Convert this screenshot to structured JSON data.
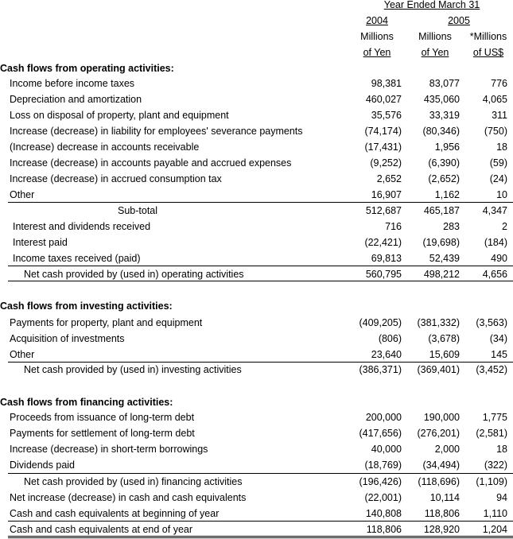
{
  "header": {
    "period": "Year Ended March 31",
    "year_2004": "2004",
    "year_2005": "2005",
    "col1_line1": "Millions",
    "col1_line2": "of Yen",
    "col2_line1": "Millions",
    "col2_line2": "of Yen",
    "col3_line1": "*Millions",
    "col3_line2": "of US$"
  },
  "operating": {
    "title": "Cash flows from operating activities:",
    "rows": [
      {
        "label": "Income before income taxes",
        "v2004": "98,381",
        "v2005": "83,077",
        "usd": "776"
      },
      {
        "label": "Depreciation and amortization",
        "v2004": "460,027",
        "v2005": "435,060",
        "usd": "4,065"
      },
      {
        "label": "Loss on disposal of property, plant and equipment",
        "v2004": "35,576",
        "v2005": "33,319",
        "usd": "311"
      },
      {
        "label": "Increase (decrease) in liability for employees' severance payments",
        "v2004": "(74,174)",
        "v2005": "(80,346)",
        "usd": "(750)"
      },
      {
        "label": "(Increase) decrease in accounts receivable",
        "v2004": "(17,431)",
        "v2005": "1,956",
        "usd": "18"
      },
      {
        "label": "Increase (decrease) in accounts payable and accrued expenses",
        "v2004": "(9,252)",
        "v2005": "(6,390)",
        "usd": "(59)"
      },
      {
        "label": "Increase (decrease) in accrued consumption tax",
        "v2004": "2,652",
        "v2005": "(2,652)",
        "usd": "(24)"
      },
      {
        "label": "Other",
        "v2004": "16,907",
        "v2005": "1,162",
        "usd": "10"
      },
      {
        "label": "Sub-total",
        "v2004": "512,687",
        "v2005": "465,187",
        "usd": "4,347"
      },
      {
        "label": "Interest and dividends received",
        "v2004": "716",
        "v2005": "283",
        "usd": "2"
      },
      {
        "label": "Interest paid",
        "v2004": "(22,421)",
        "v2005": "(19,698)",
        "usd": "(184)"
      },
      {
        "label": "Income taxes received (paid)",
        "v2004": "69,813",
        "v2005": "52,439",
        "usd": "490"
      },
      {
        "label": "Net cash provided by (used in) operating activities",
        "v2004": "560,795",
        "v2005": "498,212",
        "usd": "4,656"
      }
    ]
  },
  "investing": {
    "title": "Cash flows from investing activities:",
    "rows": [
      {
        "label": "Payments for property, plant and equipment",
        "v2004": "(409,205)",
        "v2005": "(381,332)",
        "usd": "(3,563)"
      },
      {
        "label": "Acquisition of investments",
        "v2004": "(806)",
        "v2005": "(3,678)",
        "usd": "(34)"
      },
      {
        "label": "Other",
        "v2004": "23,640",
        "v2005": "15,609",
        "usd": "145"
      },
      {
        "label": "Net cash provided by (used in) investing activities",
        "v2004": "(386,371)",
        "v2005": "(369,401)",
        "usd": "(3,452)"
      }
    ]
  },
  "financing": {
    "title": "Cash flows from financing activities:",
    "rows": [
      {
        "label": "Proceeds from issuance of long-term debt",
        "v2004": "200,000",
        "v2005": "190,000",
        "usd": "1,775"
      },
      {
        "label": "Payments for settlement of long-term debt",
        "v2004": "(417,656)",
        "v2005": "(276,201)",
        "usd": "(2,581)"
      },
      {
        "label": "Increase (decrease) in short-term borrowings",
        "v2004": "40,000",
        "v2005": "2,000",
        "usd": "18"
      },
      {
        "label": "Dividends paid",
        "v2004": "(18,769)",
        "v2005": "(34,494)",
        "usd": "(322)"
      },
      {
        "label": "Net cash provided by (used in) financing activities",
        "v2004": "(196,426)",
        "v2005": "(118,696)",
        "usd": "(1,109)"
      }
    ]
  },
  "summary": {
    "rows": [
      {
        "label": "Net increase (decrease) in cash and cash equivalents",
        "v2004": "(22,001)",
        "v2005": "10,114",
        "usd": "94"
      },
      {
        "label": "Cash and cash equivalents at beginning of year",
        "v2004": "140,808",
        "v2005": "118,806",
        "usd": "1,110"
      },
      {
        "label": "Cash and cash equivalents at end of year",
        "v2004": "118,806",
        "v2005": "128,920",
        "usd": "1,204"
      }
    ]
  }
}
